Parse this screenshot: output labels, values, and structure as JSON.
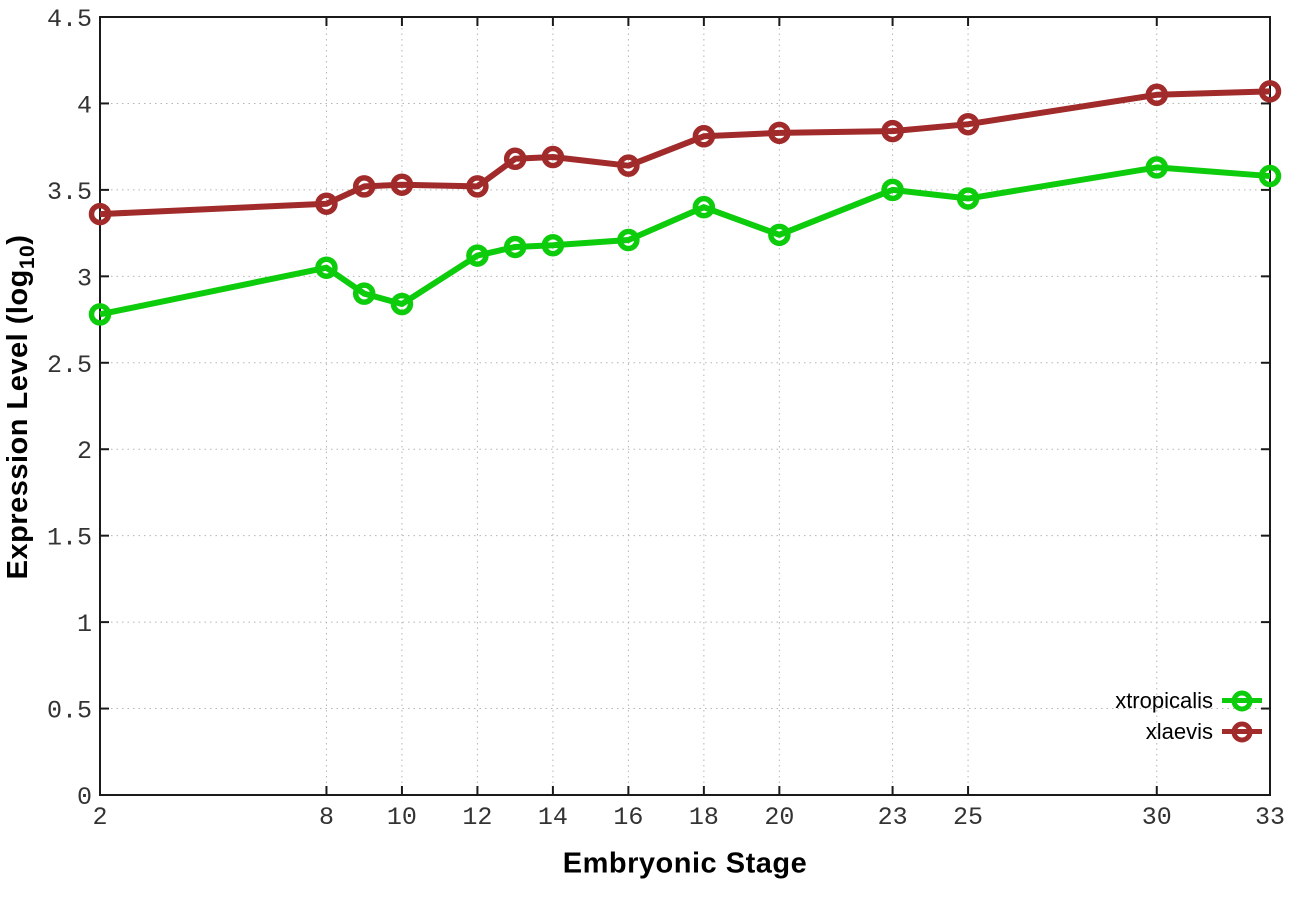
{
  "axes": {
    "x_label": "Embryonic Stage",
    "y_label_main": "Expression Level (log",
    "y_label_sub": "10",
    "y_label_close": ")"
  },
  "legend": {
    "items": [
      {
        "label": "xtropicalis"
      },
      {
        "label": "xlaevis"
      }
    ]
  },
  "chart_data": {
    "type": "line",
    "title": "",
    "xlabel": "Embryonic Stage",
    "ylabel": "Expression Level (log10)",
    "xlim": [
      2,
      33
    ],
    "ylim": [
      0,
      4.5
    ],
    "grid": true,
    "grid_style": "dotted",
    "legend_position": "bottom-right-inside",
    "x": [
      2,
      8,
      9,
      10,
      12,
      13,
      14,
      16,
      18,
      20,
      23,
      25,
      30,
      33
    ],
    "x_ticks": [
      2,
      8,
      10,
      12,
      14,
      16,
      18,
      20,
      23,
      25,
      30,
      33
    ],
    "y_ticks": [
      0,
      0.5,
      1,
      1.5,
      2,
      2.5,
      3,
      3.5,
      4,
      4.5
    ],
    "series": [
      {
        "name": "xtropicalis",
        "color": "#0ccc0c",
        "marker": "open-circle",
        "values": [
          2.78,
          3.05,
          2.9,
          2.84,
          3.12,
          3.17,
          3.18,
          3.21,
          3.4,
          3.24,
          3.5,
          3.45,
          3.63,
          3.58
        ]
      },
      {
        "name": "xlaevis",
        "color": "#a12a2a",
        "marker": "open-circle",
        "values": [
          3.36,
          3.42,
          3.52,
          3.53,
          3.52,
          3.68,
          3.69,
          3.64,
          3.81,
          3.83,
          3.84,
          3.88,
          4.05,
          4.07
        ]
      }
    ],
    "colors": {
      "border": "#1a1a1a",
      "grid": "#b5b5b5",
      "tick_label": "#333333"
    }
  }
}
